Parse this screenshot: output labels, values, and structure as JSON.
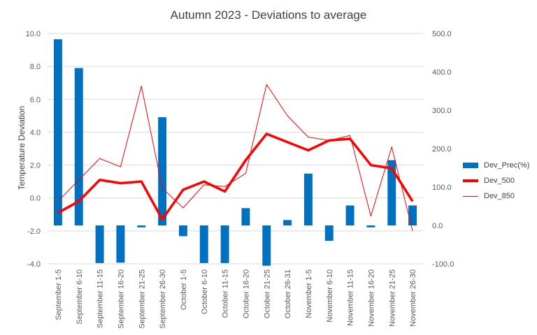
{
  "chart_data": {
    "type": "bar+line",
    "title": "Autumn 2023 - Deviations to average",
    "ylabel": "Temperature Deviation",
    "ylim": [
      -4,
      10
    ],
    "y_ticks": [
      "-4.0",
      "-2.0",
      "0.0",
      "2.0",
      "4.0",
      "6.0",
      "8.0",
      "10.0"
    ],
    "y2lim": [
      -100,
      500
    ],
    "y2_ticks": [
      "-100.0",
      "0.0",
      "100.0",
      "200.0",
      "300.0",
      "400.0",
      "500.0"
    ],
    "legend_position": "right",
    "categories": [
      "September 1-5",
      "September 6-10",
      "September 11-15",
      "September 16-20",
      "September 21-25",
      "September 26-30",
      "October 1-5",
      "October 6-10",
      "October 11-15",
      "October 16-20",
      "October 21-25",
      "October 26-31",
      "November 1-5",
      "November 6-10",
      "November 11-15",
      "November 16-20",
      "November 21-25",
      "November 26-30"
    ],
    "series": [
      {
        "name": "Dev_Prec(%)",
        "type": "bar",
        "axis": "secondary",
        "color": "#0070c0",
        "values": [
          485,
          410,
          -98,
          -97,
          -5,
          282,
          -28,
          -98,
          -98,
          45,
          -105,
          14,
          135,
          -40,
          52,
          -5,
          170,
          52
        ]
      },
      {
        "name": "Dev_500",
        "type": "line",
        "axis": "primary",
        "color": "#ff0000",
        "width": "thick",
        "values": [
          -0.9,
          -0.2,
          1.1,
          0.9,
          1.0,
          -1.3,
          0.5,
          1.0,
          0.4,
          2.3,
          3.9,
          3.4,
          2.9,
          3.5,
          3.6,
          2.0,
          1.8,
          -0.2
        ]
      },
      {
        "name": "Dev_850",
        "type": "line",
        "axis": "primary",
        "color": "#ff0000",
        "width": "thin",
        "values": [
          -0.2,
          1.1,
          2.4,
          1.9,
          6.8,
          0.6,
          -0.6,
          0.8,
          0.7,
          1.5,
          6.9,
          5.0,
          3.7,
          3.5,
          3.8,
          -1.1,
          3.1,
          -2.0
        ]
      }
    ]
  }
}
